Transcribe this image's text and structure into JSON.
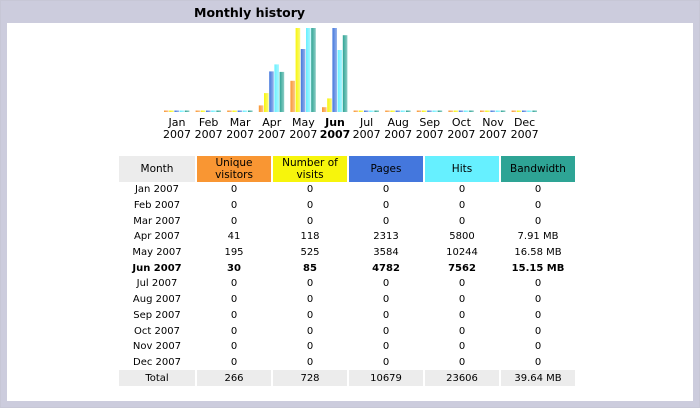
{
  "title": "Monthly history",
  "colors": {
    "unique_visitors": "#f99633",
    "visits": "#f7f50c",
    "pages": "#4477dd",
    "hits": "#66f0ff",
    "bandwidth": "#2ea495"
  },
  "chart_data": {
    "type": "bar",
    "categories": [
      [
        "Jan",
        "2007"
      ],
      [
        "Feb",
        "2007"
      ],
      [
        "Mar",
        "2007"
      ],
      [
        "Apr",
        "2007"
      ],
      [
        "May",
        "2007"
      ],
      [
        "Jun",
        "2007"
      ],
      [
        "Jul",
        "2007"
      ],
      [
        "Aug",
        "2007"
      ],
      [
        "Sep",
        "2007"
      ],
      [
        "Oct",
        "2007"
      ],
      [
        "Nov",
        "2007"
      ],
      [
        "Dec",
        "2007"
      ]
    ],
    "highlight": "Jun",
    "series": [
      {
        "key": "uv",
        "values": [
          0,
          0,
          0,
          41,
          195,
          30,
          0,
          0,
          0,
          0,
          0,
          0
        ]
      },
      {
        "key": "nv",
        "values": [
          0,
          0,
          0,
          118,
          525,
          85,
          0,
          0,
          0,
          0,
          0,
          0
        ]
      },
      {
        "key": "pg",
        "values": [
          0,
          0,
          0,
          2313,
          3584,
          4782,
          0,
          0,
          0,
          0,
          0,
          0
        ]
      },
      {
        "key": "ht",
        "values": [
          0,
          0,
          0,
          5800,
          10244,
          7562,
          0,
          0,
          0,
          0,
          0,
          0
        ]
      },
      {
        "key": "bw",
        "values": [
          0,
          0,
          0,
          7.91,
          16.58,
          15.15,
          0,
          0,
          0,
          0,
          0,
          0
        ]
      }
    ]
  },
  "table": {
    "headers": {
      "month": "Month",
      "uv": "Unique visitors",
      "nv": "Number of visits",
      "pg": "Pages",
      "ht": "Hits",
      "bw": "Bandwidth"
    },
    "rows": [
      {
        "month": "Jan 2007",
        "uv": "0",
        "nv": "0",
        "pg": "0",
        "ht": "0",
        "bw": "0"
      },
      {
        "month": "Feb 2007",
        "uv": "0",
        "nv": "0",
        "pg": "0",
        "ht": "0",
        "bw": "0"
      },
      {
        "month": "Mar 2007",
        "uv": "0",
        "nv": "0",
        "pg": "0",
        "ht": "0",
        "bw": "0"
      },
      {
        "month": "Apr 2007",
        "uv": "41",
        "nv": "118",
        "pg": "2313",
        "ht": "5800",
        "bw": "7.91 MB"
      },
      {
        "month": "May 2007",
        "uv": "195",
        "nv": "525",
        "pg": "3584",
        "ht": "10244",
        "bw": "16.58 MB"
      },
      {
        "month": "Jun 2007",
        "uv": "30",
        "nv": "85",
        "pg": "4782",
        "ht": "7562",
        "bw": "15.15 MB"
      },
      {
        "month": "Jul 2007",
        "uv": "0",
        "nv": "0",
        "pg": "0",
        "ht": "0",
        "bw": "0"
      },
      {
        "month": "Aug 2007",
        "uv": "0",
        "nv": "0",
        "pg": "0",
        "ht": "0",
        "bw": "0"
      },
      {
        "month": "Sep 2007",
        "uv": "0",
        "nv": "0",
        "pg": "0",
        "ht": "0",
        "bw": "0"
      },
      {
        "month": "Oct 2007",
        "uv": "0",
        "nv": "0",
        "pg": "0",
        "ht": "0",
        "bw": "0"
      },
      {
        "month": "Nov 2007",
        "uv": "0",
        "nv": "0",
        "pg": "0",
        "ht": "0",
        "bw": "0"
      },
      {
        "month": "Dec 2007",
        "uv": "0",
        "nv": "0",
        "pg": "0",
        "ht": "0",
        "bw": "0"
      }
    ],
    "bold_row": 5,
    "total": {
      "month": "Total",
      "uv": "266",
      "nv": "728",
      "pg": "10679",
      "ht": "23606",
      "bw": "39.64 MB"
    }
  }
}
